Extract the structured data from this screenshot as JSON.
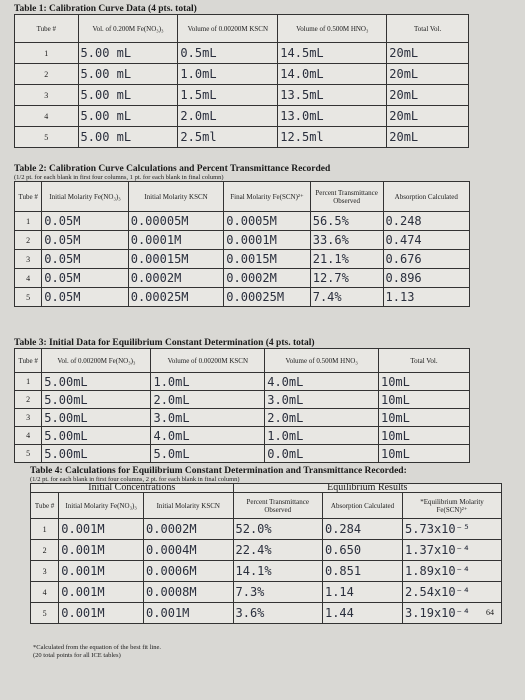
{
  "tables": [
    {
      "title": "Table 1: Calibration Curve Data (4 pts. total)",
      "headers": [
        "Tube #",
        "Vol. of 0.200M Fe(NO₃)₃",
        "Volume of 0.00200M KSCN",
        "Volume of 0.500M HNO₃",
        "Total Vol."
      ],
      "rows": [
        [
          "1",
          "5.00 mL",
          "0.5mL",
          "14.5mL",
          "20mL"
        ],
        [
          "2",
          "5.00 mL",
          "1.0mL",
          "14.0mL",
          "20mL"
        ],
        [
          "3",
          "5.00 mL",
          "1.5mL",
          "13.5mL",
          "20mL"
        ],
        [
          "4",
          "5.00 mL",
          "2.0mL",
          "13.0mL",
          "20mL"
        ],
        [
          "5",
          "5.00 mL",
          "2.5ml",
          "12.5ml",
          "20mL"
        ]
      ]
    },
    {
      "title": "Table 2: Calibration Curve Calculations and Percent Transmittance Recorded",
      "note": "(1/2 pt. for each blank in first four columns, 1 pt. for each blank in final column)",
      "headers": [
        "Tube #",
        "Initial Molarity Fe(NO₃)₃",
        "Initial Molarity KSCN",
        "Final Molarity Fe(SCN)²⁺",
        "Percent Transmittance Observed",
        "Absorption Calculated"
      ],
      "rows": [
        [
          "1",
          "0.05M",
          "0.00005M",
          "0.0005M",
          "56.5%",
          "0.248"
        ],
        [
          "2",
          "0.05M",
          "0.0001M",
          "0.0001M",
          "33.6%",
          "0.474"
        ],
        [
          "3",
          "0.05M",
          "0.00015M",
          "0.0015M",
          "21.1%",
          "0.676"
        ],
        [
          "4",
          "0.05M",
          "0.0002M",
          "0.0002M",
          "12.7%",
          "0.896"
        ],
        [
          "5",
          "0.05M",
          "0.00025M",
          "0.00025M",
          "7.4%",
          "1.13"
        ]
      ]
    },
    {
      "title": "Table 3: Initial Data for Equilibrium Constant Determination (4 pts. total)",
      "headers": [
        "Tube #",
        "Vol. of 0.00200M Fe(NO₃)₃",
        "Volume of 0.00200M KSCN",
        "Volume of 0.500M HNO₃",
        "Total Vol."
      ],
      "rows": [
        [
          "1",
          "5.00mL",
          "1.0mL",
          "4.0mL",
          "10mL"
        ],
        [
          "2",
          "5.00mL",
          "2.0mL",
          "3.0mL",
          "10mL"
        ],
        [
          "3",
          "5.00mL",
          "3.0mL",
          "2.0mL",
          "10mL"
        ],
        [
          "4",
          "5.00mL",
          "4.0mL",
          "1.0mL",
          "10mL"
        ],
        [
          "5",
          "5.00mL",
          "5.0mL",
          "0.0mL",
          "10mL"
        ]
      ]
    },
    {
      "title": "Table 4: Calculations for Equilibrium Constant Determination and Transmittance Recorded:",
      "note": "(1/2 pt. for each blank in first four columns, 2 pt. for each blank in final column)",
      "groups": [
        "Initial Concentrations",
        "Equilibrium Results"
      ],
      "headers": [
        "Tube #",
        "Initial Molarity Fe(NO₃)₃",
        "Initial Molarity KSCN",
        "Percent Transmittance Observed",
        "Absorption Calculated",
        "*Equilibrium Molarity Fe(SCN)²⁺"
      ],
      "rows": [
        [
          "1",
          "0.001M",
          "0.0002M",
          "52.0%",
          "0.284",
          "5.73x10⁻⁵"
        ],
        [
          "2",
          "0.001M",
          "0.0004M",
          "22.4%",
          "0.650",
          "1.37x10⁻⁴"
        ],
        [
          "3",
          "0.001M",
          "0.0006M",
          "14.1%",
          "0.851",
          "1.89x10⁻⁴"
        ],
        [
          "4",
          "0.001M",
          "0.0008M",
          "7.3%",
          "1.14",
          "2.54x10⁻⁴"
        ],
        [
          "5",
          "0.001M",
          "0.001M",
          "3.6%",
          "1.44",
          "3.19x10⁻⁴"
        ]
      ]
    }
  ],
  "footnotes": [
    "*Calculated from the equation of the best fit line.",
    "(20 total points for all ICE tables)"
  ],
  "page_number": "64"
}
